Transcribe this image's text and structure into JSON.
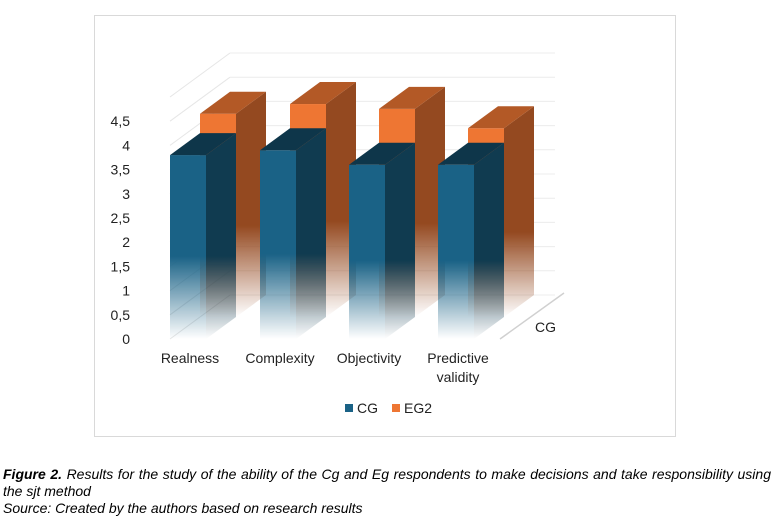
{
  "chart_data": {
    "type": "bar",
    "subtype": "3d-clustered-column",
    "categories": [
      "Realness",
      "Complexity",
      "Objectivity",
      "Predictive validity"
    ],
    "category_lines": [
      [
        "Realness"
      ],
      [
        "Complexity"
      ],
      [
        "Objectivity"
      ],
      [
        "Predictive",
        "validity"
      ]
    ],
    "series": [
      {
        "name": "CG",
        "values": [
          3.8,
          3.9,
          3.6,
          3.6
        ],
        "color": "#1a6286"
      },
      {
        "name": "EG2",
        "values": [
          4.2,
          4.4,
          4.3,
          3.9
        ],
        "color": "#ee7633"
      }
    ],
    "yticks": [
      "0",
      "0,5",
      "1",
      "1,5",
      "2",
      "2,5",
      "3",
      "3,5",
      "4",
      "4,5"
    ],
    "ylim": [
      0,
      4.5
    ],
    "depth_axis_label": "CG",
    "legend": {
      "position": "bottom",
      "entries": [
        "CG",
        "EG2"
      ]
    },
    "grid": true
  },
  "caption": {
    "figure_label": "Figure 2.",
    "text": " Results for the study of the ability of the Cg and Eg respondents to make decisions and take responsibility using the sjt method",
    "source": "Source: Created by the authors based on research results"
  }
}
